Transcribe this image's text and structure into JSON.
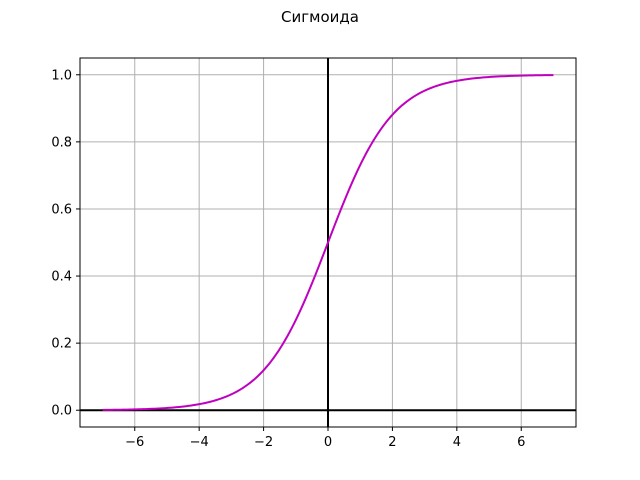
{
  "chart_data": {
    "type": "line",
    "title": "Сигмоида",
    "xlabel": "",
    "ylabel": "",
    "xlim": [
      -7.7,
      7.7
    ],
    "ylim": [
      -0.05,
      1.05
    ],
    "x_ticks": [
      -6,
      -4,
      -2,
      0,
      2,
      4,
      6
    ],
    "x_tick_labels": [
      "−6",
      "−4",
      "−2",
      "0",
      "2",
      "4",
      "6"
    ],
    "y_ticks": [
      0.0,
      0.2,
      0.4,
      0.6,
      0.8,
      1.0
    ],
    "y_tick_labels": [
      "0.0",
      "0.2",
      "0.4",
      "0.6",
      "0.8",
      "1.0"
    ],
    "grid": true,
    "axis_lines": {
      "x": 0,
      "y": 0,
      "color": "#000000"
    },
    "series": [
      {
        "color": "#bf00bf",
        "x": [
          -7,
          -6,
          -5,
          -4,
          -3,
          -2,
          -1,
          0,
          1,
          2,
          3,
          4,
          5,
          6,
          7
        ],
        "y": [
          0.0009,
          0.0025,
          0.0067,
          0.018,
          0.0474,
          0.1192,
          0.2689,
          0.5,
          0.7311,
          0.8808,
          0.9526,
          0.982,
          0.9933,
          0.9975,
          0.9991
        ]
      }
    ]
  }
}
